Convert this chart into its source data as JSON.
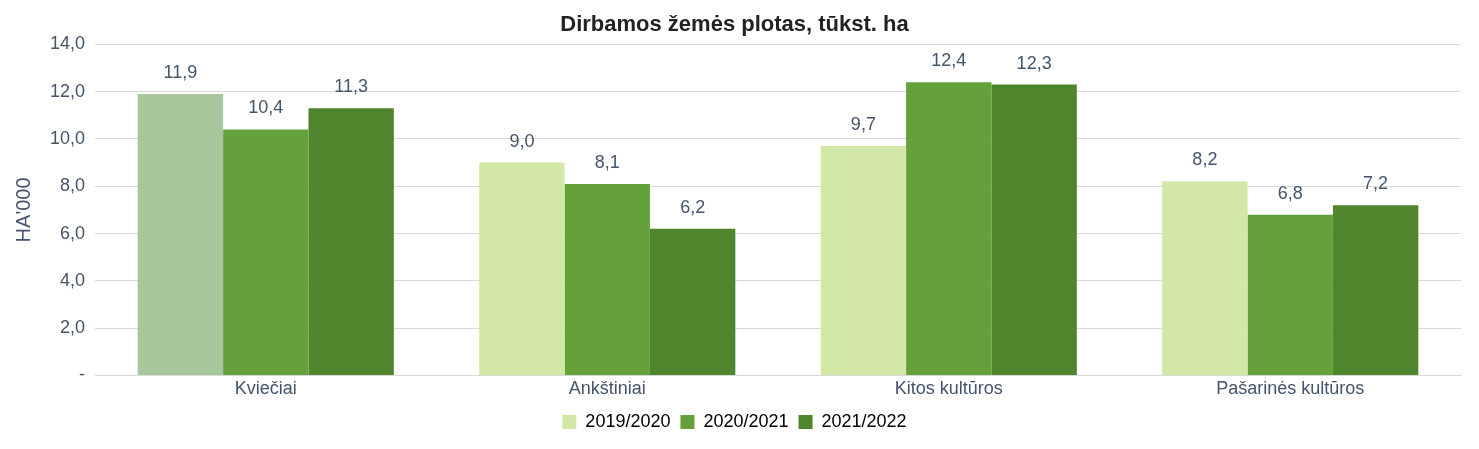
{
  "chart_data": {
    "type": "bar",
    "title": "Dirbamos žemės plotas, tūkst. ha",
    "ylabel": "HA'000",
    "categories": [
      "Kviečiai",
      "Ankštiniai",
      "Kitos kultūros",
      "Pašarinės kultūros"
    ],
    "series": [
      {
        "name": "2019/2020",
        "color": "#d3e8a7",
        "colors": [
          "#a8c69b",
          "#d3e8a7",
          "#d3e8a7",
          "#d3e8a7"
        ],
        "values": [
          11.9,
          9.0,
          9.7,
          8.2
        ],
        "value_labels": [
          "11,9",
          "9,0",
          "9,7",
          "8,2"
        ]
      },
      {
        "name": "2020/2021",
        "color": "#64a13b",
        "values": [
          10.4,
          8.1,
          12.4,
          6.8
        ],
        "value_labels": [
          "10,4",
          "8,1",
          "12,4",
          "6,8"
        ]
      },
      {
        "name": "2021/2022",
        "color": "#4f862d",
        "values": [
          11.3,
          6.2,
          12.3,
          7.2
        ],
        "value_labels": [
          "11,3",
          "6,2",
          "12,3",
          "7,2"
        ]
      }
    ],
    "ylim": [
      0,
      14
    ],
    "yticks": [
      {
        "value": 0,
        "label": "-"
      },
      {
        "value": 2,
        "label": "2,0"
      },
      {
        "value": 4,
        "label": "4,0"
      },
      {
        "value": 6,
        "label": "6,0"
      },
      {
        "value": 8,
        "label": "8,0"
      },
      {
        "value": 10,
        "label": "10,0"
      },
      {
        "value": 12,
        "label": "12,0"
      },
      {
        "value": 14,
        "label": "14,0"
      }
    ],
    "grid": "y",
    "legend": "bottom"
  }
}
